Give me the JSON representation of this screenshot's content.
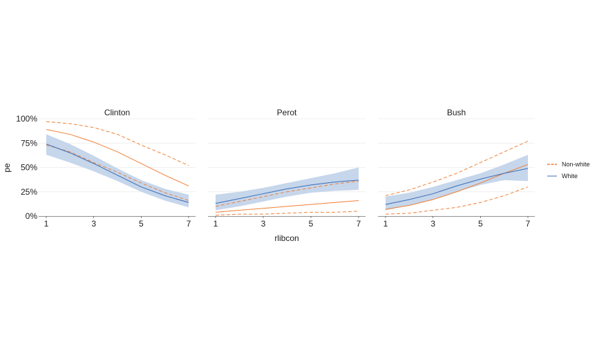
{
  "chart_data": {
    "type": "line",
    "xlabel": "rlibcon",
    "ylabel": "pe",
    "x_ticks": [
      1,
      3,
      5,
      7
    ],
    "y_ticks": [
      "0%",
      "25%",
      "50%",
      "75%",
      "100%"
    ],
    "xlim": [
      1,
      7
    ],
    "ylim": [
      0,
      1
    ],
    "grid": true,
    "legend_position": "right",
    "colors": {
      "Non-white": "#f07f32",
      "White": "#3a6bb5",
      "band": "#c6d6eb"
    },
    "legend": [
      {
        "name": "Non-white",
        "color": "#f07f32"
      },
      {
        "name": "White",
        "color": "#3a6bb5"
      }
    ],
    "x": [
      1,
      2,
      3,
      4,
      5,
      6,
      7
    ],
    "facets": [
      {
        "title": "Clinton",
        "series": [
          {
            "name": "Non-white",
            "estimate": [
              0.89,
              0.84,
              0.76,
              0.66,
              0.54,
              0.42,
              0.31
            ],
            "lower": [
              0.73,
              0.66,
              0.55,
              0.45,
              0.34,
              0.24,
              0.16
            ],
            "upper": [
              0.97,
              0.95,
              0.91,
              0.84,
              0.73,
              0.63,
              0.52
            ]
          },
          {
            "name": "White",
            "estimate": [
              0.74,
              0.65,
              0.54,
              0.42,
              0.3,
              0.21,
              0.14
            ],
            "lower": [
              0.63,
              0.55,
              0.46,
              0.36,
              0.25,
              0.16,
              0.09
            ],
            "upper": [
              0.84,
              0.74,
              0.62,
              0.49,
              0.37,
              0.28,
              0.22
            ]
          }
        ]
      },
      {
        "title": "Perot",
        "series": [
          {
            "name": "Non-white",
            "estimate": [
              0.04,
              0.06,
              0.08,
              0.1,
              0.12,
              0.14,
              0.16
            ],
            "lower": [
              0.01,
              0.02,
              0.02,
              0.03,
              0.04,
              0.04,
              0.05
            ],
            "upper": [
              0.1,
              0.15,
              0.2,
              0.25,
              0.29,
              0.33,
              0.36
            ]
          },
          {
            "name": "White",
            "estimate": [
              0.13,
              0.18,
              0.23,
              0.28,
              0.32,
              0.35,
              0.37
            ],
            "lower": [
              0.06,
              0.1,
              0.15,
              0.2,
              0.24,
              0.26,
              0.27
            ],
            "upper": [
              0.22,
              0.25,
              0.29,
              0.34,
              0.39,
              0.44,
              0.5
            ]
          }
        ]
      },
      {
        "title": "Bush",
        "series": [
          {
            "name": "Non-white",
            "estimate": [
              0.07,
              0.11,
              0.17,
              0.25,
              0.34,
              0.44,
              0.53
            ],
            "lower": [
              0.02,
              0.03,
              0.06,
              0.09,
              0.14,
              0.21,
              0.3
            ],
            "upper": [
              0.21,
              0.27,
              0.35,
              0.44,
              0.55,
              0.66,
              0.77
            ]
          },
          {
            "name": "White",
            "estimate": [
              0.12,
              0.17,
              0.23,
              0.31,
              0.38,
              0.44,
              0.49
            ],
            "lower": [
              0.06,
              0.11,
              0.17,
              0.25,
              0.32,
              0.37,
              0.36
            ],
            "upper": [
              0.2,
              0.24,
              0.3,
              0.37,
              0.44,
              0.53,
              0.63
            ]
          }
        ]
      }
    ]
  }
}
